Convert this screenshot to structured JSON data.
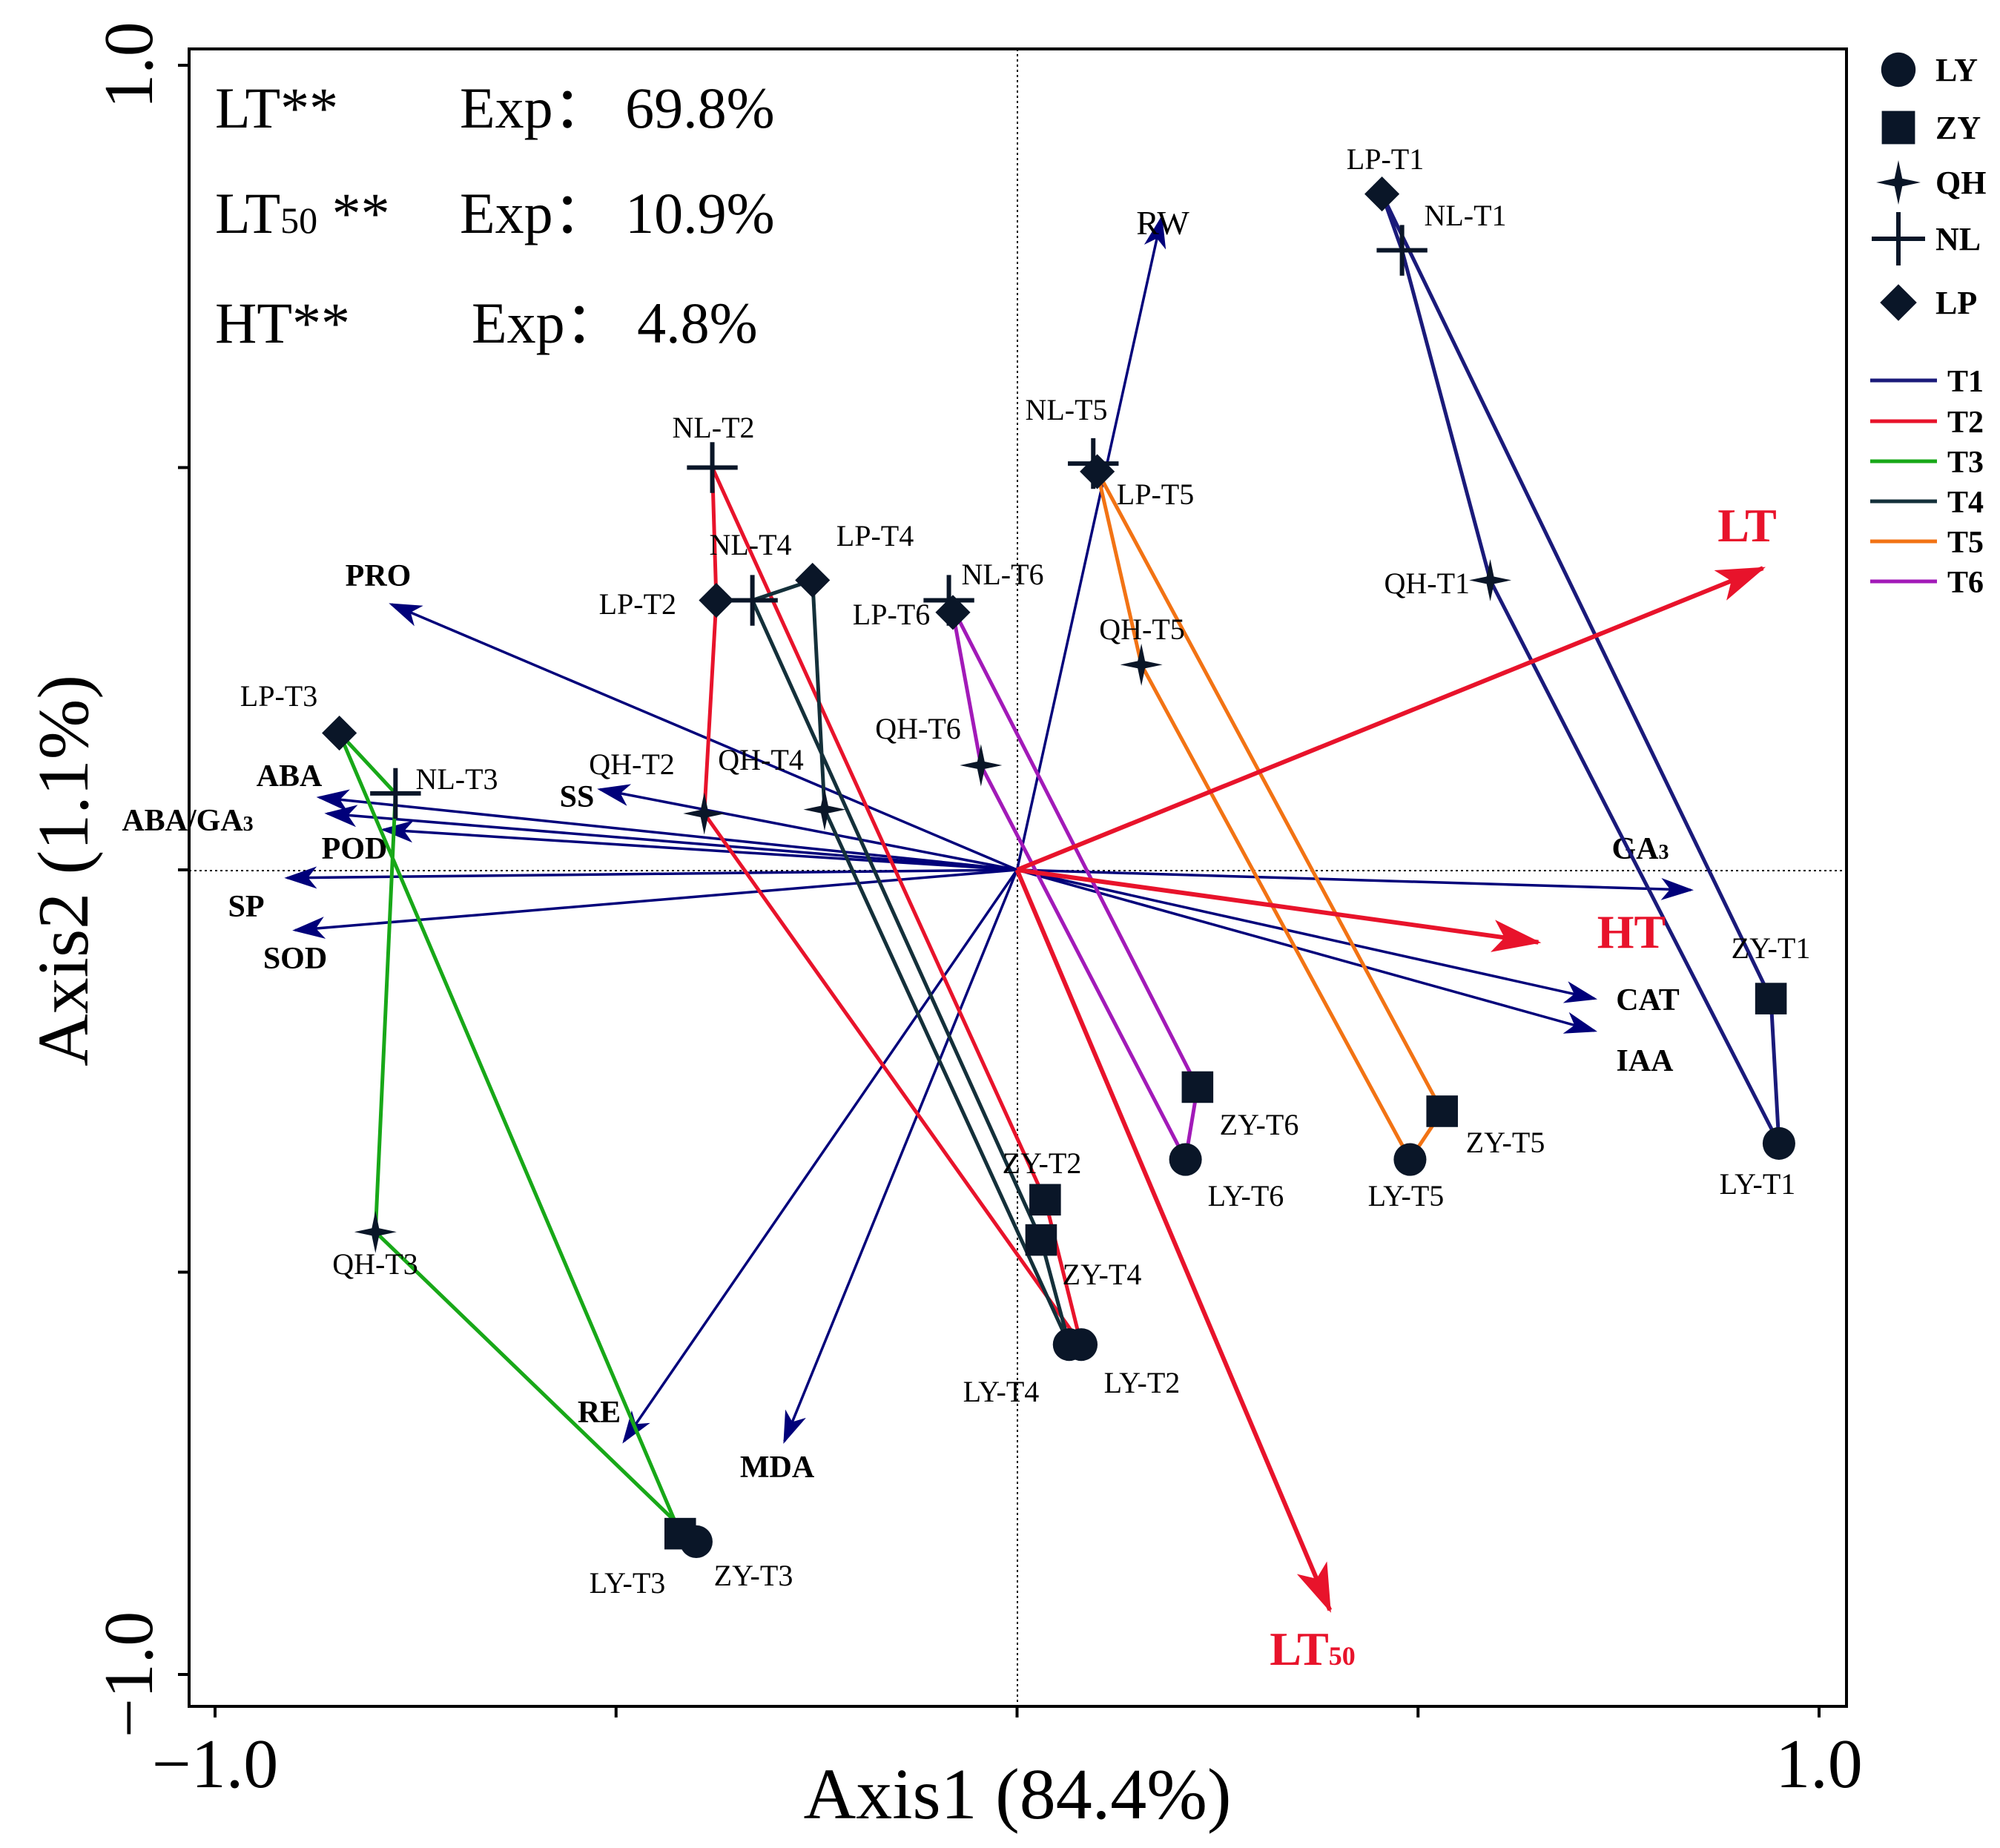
{
  "colors": {
    "arrow": "#00007a",
    "response": "#e8132b",
    "T1": "#1a1a7a",
    "T2": "#e8132b",
    "T3": "#18a818",
    "T4": "#14303a",
    "T5": "#f27314",
    "T6": "#a21ab8",
    "marker": "#0a1628"
  },
  "chart_data": {
    "type": "scatter",
    "subtype": "redundancy-analysis biplot",
    "xlabel": "Axis1 (84.4%)",
    "ylabel": "Axis2 (1.1%)",
    "xlim": [
      -1.0,
      1.0
    ],
    "ylim": [
      -1.0,
      1.0
    ],
    "x_ticks": [
      -1.0,
      -0.5,
      0,
      0.5,
      1.0
    ],
    "y_ticks": [
      -1.0,
      -0.5,
      0,
      0.5,
      1.0
    ],
    "x_tick_labels": [
      "−1.0",
      "1.0"
    ],
    "y_tick_labels": [
      "1.0",
      "−1.0"
    ],
    "zero_lines": true,
    "stats": [
      {
        "var": "LT",
        "sub": "",
        "sig": "**",
        "exp": "Exp： 69.8%"
      },
      {
        "var": "LT",
        "sub": "50",
        "sig": "  **",
        "exp": "Exp： 10.9%"
      },
      {
        "var": "HT",
        "sub": "",
        "sig": "**",
        "exp": "Exp： 4.8%"
      }
    ],
    "explanatory_arrows": [
      {
        "label": "LT",
        "sub": "",
        "x": 0.93,
        "y": 0.375
      },
      {
        "label": "HT",
        "sub": "",
        "x": 0.65,
        "y": -0.09
      },
      {
        "label": "LT",
        "sub": "50",
        "x": 0.39,
        "y": -0.92
      }
    ],
    "response_arrows": [
      {
        "label": "RW",
        "sub": "",
        "x": 0.18,
        "y": 0.81
      },
      {
        "label": "PRO",
        "sub": "",
        "x": -0.78,
        "y": 0.33
      },
      {
        "label": "ABA",
        "sub": "",
        "x": -0.87,
        "y": 0.09
      },
      {
        "label": "ABA/GA",
        "sub": "3",
        "x": -0.86,
        "y": 0.07
      },
      {
        "label": "POD",
        "sub": "",
        "x": -0.79,
        "y": 0.05
      },
      {
        "label": "SS",
        "sub": "",
        "x": -0.52,
        "y": 0.1
      },
      {
        "label": "SP",
        "sub": "",
        "x": -0.91,
        "y": -0.01
      },
      {
        "label": "SOD",
        "sub": "",
        "x": -0.9,
        "y": -0.075
      },
      {
        "label": "GA",
        "sub": "3",
        "x": 0.84,
        "y": -0.025
      },
      {
        "label": "CAT",
        "sub": "",
        "x": 0.72,
        "y": -0.16
      },
      {
        "label": "IAA",
        "sub": "",
        "x": 0.72,
        "y": -0.2
      },
      {
        "label": "RE",
        "sub": "",
        "x": -0.49,
        "y": -0.71
      },
      {
        "label": "MDA",
        "sub": "",
        "x": -0.29,
        "y": -0.71
      }
    ],
    "groups": [
      {
        "name": "T1",
        "points": [
          {
            "label": "LP-T1",
            "site": "LP",
            "x": 0.455,
            "y": 0.84
          },
          {
            "label": "NL-T1",
            "site": "NL",
            "x": 0.48,
            "y": 0.77
          },
          {
            "label": "QH-T1",
            "site": "QH",
            "x": 0.59,
            "y": 0.36
          },
          {
            "label": "LY-T1",
            "site": "LY",
            "x": 0.95,
            "y": -0.34
          },
          {
            "label": "ZY-T1",
            "site": "ZY",
            "x": 0.94,
            "y": -0.16
          }
        ]
      },
      {
        "name": "T2",
        "points": [
          {
            "label": "NL-T2",
            "site": "NL",
            "x": -0.38,
            "y": 0.5
          },
          {
            "label": "LP-T2",
            "site": "LP",
            "x": -0.375,
            "y": 0.335
          },
          {
            "label": "QH-T2",
            "site": "QH",
            "x": -0.39,
            "y": 0.07
          },
          {
            "label": "LY-T2",
            "site": "LY",
            "x": 0.08,
            "y": -0.59
          },
          {
            "label": "ZY-T2",
            "site": "ZY",
            "x": 0.035,
            "y": -0.41
          }
        ]
      },
      {
        "name": "T3",
        "points": [
          {
            "label": "LP-T3",
            "site": "LP",
            "x": -0.845,
            "y": 0.17
          },
          {
            "label": "NL-T3",
            "site": "NL",
            "x": -0.775,
            "y": 0.095
          },
          {
            "label": "QH-T3",
            "site": "QH",
            "x": -0.8,
            "y": -0.45
          },
          {
            "label": "LY-T3",
            "site": "LY",
            "x": -0.4,
            "y": -0.835
          },
          {
            "label": "ZY-T3",
            "site": "ZY",
            "x": -0.42,
            "y": -0.825
          }
        ]
      },
      {
        "name": "T4",
        "points": [
          {
            "label": "NL-T4",
            "site": "NL",
            "x": -0.33,
            "y": 0.335
          },
          {
            "label": "LP-T4",
            "site": "LP",
            "x": -0.255,
            "y": 0.36
          },
          {
            "label": "QH-T4",
            "site": "QH",
            "x": -0.24,
            "y": 0.075
          },
          {
            "label": "LY-T4",
            "site": "LY",
            "x": 0.065,
            "y": -0.59
          },
          {
            "label": "ZY-T4",
            "site": "ZY",
            "x": 0.03,
            "y": -0.46
          }
        ]
      },
      {
        "name": "T5",
        "points": [
          {
            "label": "NL-T5",
            "site": "NL",
            "x": 0.095,
            "y": 0.505
          },
          {
            "label": "LP-T5",
            "site": "LP",
            "x": 0.1,
            "y": 0.495
          },
          {
            "label": "QH-T5",
            "site": "QH",
            "x": 0.155,
            "y": 0.255
          },
          {
            "label": "LY-T5",
            "site": "LY",
            "x": 0.49,
            "y": -0.36
          },
          {
            "label": "ZY-T5",
            "site": "ZY",
            "x": 0.53,
            "y": -0.3
          }
        ]
      },
      {
        "name": "T6",
        "points": [
          {
            "label": "NL-T6",
            "site": "NL",
            "x": -0.085,
            "y": 0.335
          },
          {
            "label": "LP-T6",
            "site": "LP",
            "x": -0.08,
            "y": 0.32
          },
          {
            "label": "QH-T6",
            "site": "QH",
            "x": -0.045,
            "y": 0.13
          },
          {
            "label": "LY-T6",
            "site": "LY",
            "x": 0.21,
            "y": -0.36
          },
          {
            "label": "ZY-T6",
            "site": "ZY",
            "x": 0.225,
            "y": -0.27
          }
        ]
      }
    ],
    "legend": {
      "placement": "right",
      "sites": [
        "LY",
        "ZY",
        "QH",
        "NL",
        "LP"
      ],
      "treatments": [
        "T1",
        "T2",
        "T3",
        "T4",
        "T5",
        "T6"
      ]
    }
  }
}
